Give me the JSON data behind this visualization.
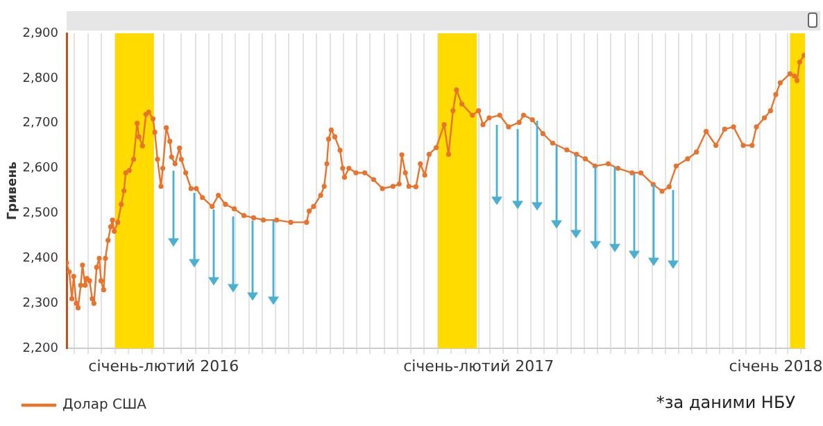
{
  "chart_data": {
    "type": "line",
    "ylabel": "Гривень",
    "annotations": [
      "*за даними НБУ"
    ],
    "xlim": [
      "2015-11-07",
      "2018-02-21"
    ],
    "xticks": [
      {
        "value": "2015-11-16",
        "label": null
      },
      {
        "value": "2015-12-01",
        "label": null
      },
      {
        "value": "2015-12-16",
        "label": null
      },
      {
        "value": "2016-01-01",
        "label": null
      },
      {
        "value": "2016-01-16",
        "label": null
      },
      {
        "value": "2016-02-01",
        "label": null
      },
      {
        "value": "2016-02-12",
        "label": null
      },
      {
        "value": "2016-02-25",
        "label": "січень-лютий 2016"
      },
      {
        "value": "2016-03-16",
        "label": null
      },
      {
        "value": "2016-04-01",
        "label": null
      },
      {
        "value": "2016-04-16",
        "label": null
      },
      {
        "value": "2016-05-01",
        "label": null
      },
      {
        "value": "2016-05-16",
        "label": null
      },
      {
        "value": "2016-06-01",
        "label": null
      },
      {
        "value": "2016-06-16",
        "label": null
      },
      {
        "value": "2016-07-01",
        "label": null
      },
      {
        "value": "2016-07-16",
        "label": null
      },
      {
        "value": "2016-08-01",
        "label": null
      },
      {
        "value": "2016-08-16",
        "label": null
      },
      {
        "value": "2016-09-01",
        "label": null
      },
      {
        "value": "2016-09-16",
        "label": null
      },
      {
        "value": "2016-10-01",
        "label": null
      },
      {
        "value": "2016-10-16",
        "label": null
      },
      {
        "value": "2016-11-01",
        "label": null
      },
      {
        "value": "2016-11-16",
        "label": null
      },
      {
        "value": "2016-12-01",
        "label": null
      },
      {
        "value": "2016-12-16",
        "label": null
      },
      {
        "value": "2017-01-01",
        "label": null
      },
      {
        "value": "2017-01-16",
        "label": null
      },
      {
        "value": "2017-02-01",
        "label": null
      },
      {
        "value": "2017-02-16",
        "label": "січень-лютий 2017"
      },
      {
        "value": "2017-03-01",
        "label": null
      },
      {
        "value": "2017-03-16",
        "label": null
      },
      {
        "value": "2017-04-01",
        "label": null
      },
      {
        "value": "2017-04-16",
        "label": null
      },
      {
        "value": "2017-05-01",
        "label": null
      },
      {
        "value": "2017-05-16",
        "label": null
      },
      {
        "value": "2017-06-01",
        "label": null
      },
      {
        "value": "2017-06-16",
        "label": null
      },
      {
        "value": "2017-07-01",
        "label": null
      },
      {
        "value": "2017-07-16",
        "label": null
      },
      {
        "value": "2017-08-01",
        "label": null
      },
      {
        "value": "2017-08-16",
        "label": null
      },
      {
        "value": "2017-09-01",
        "label": null
      },
      {
        "value": "2017-09-16",
        "label": null
      },
      {
        "value": "2017-10-01",
        "label": null
      },
      {
        "value": "2017-10-16",
        "label": null
      },
      {
        "value": "2017-11-01",
        "label": null
      },
      {
        "value": "2017-11-16",
        "label": null
      },
      {
        "value": "2017-12-01",
        "label": null
      },
      {
        "value": "2017-12-16",
        "label": null
      },
      {
        "value": "2018-01-01",
        "label": null
      },
      {
        "value": "2018-01-19",
        "label": "січень 2018"
      },
      {
        "value": "2018-02-01",
        "label": null
      },
      {
        "value": "2018-02-16",
        "label": null
      }
    ],
    "ylim": [
      2200,
      2900
    ],
    "yticks": [
      {
        "value": 2200,
        "label": "2,200"
      },
      {
        "value": 2300,
        "label": "2,300"
      },
      {
        "value": 2400,
        "label": "2,400"
      },
      {
        "value": 2500,
        "label": "2,500"
      },
      {
        "value": 2600,
        "label": "2,600"
      },
      {
        "value": 2700,
        "label": "2,700"
      },
      {
        "value": 2800,
        "label": "2,800"
      },
      {
        "value": 2900,
        "label": "2,900"
      }
    ],
    "grid": "x",
    "legend": "bottom left",
    "marker": "circle",
    "bands": [
      {
        "axis": "x",
        "from": "2016-01-01",
        "to": "2016-02-14",
        "color": "#ffdb00"
      },
      {
        "axis": "x",
        "from": "2017-01-01",
        "to": "2017-02-14",
        "color": "#ffdb00"
      },
      {
        "axis": "x",
        "from": "2018-02-04",
        "to": "2018-02-21",
        "color": "#ffdb00"
      }
    ],
    "series": [
      {
        "name": "Долар США",
        "color": "#e8732c",
        "x": [
          "2015-11-07",
          "2015-11-10",
          "2015-11-13",
          "2015-11-15",
          "2015-11-18",
          "2015-11-20",
          "2015-11-23",
          "2015-11-25",
          "2015-11-28",
          "2015-11-30",
          "2015-12-03",
          "2015-12-06",
          "2015-12-08",
          "2015-12-11",
          "2015-12-14",
          "2015-12-16",
          "2015-12-19",
          "2015-12-21",
          "2015-12-24",
          "2015-12-27",
          "2015-12-29",
          "2015-12-31",
          "2016-01-04",
          "2016-01-08",
          "2016-01-11",
          "2016-01-13",
          "2016-01-17",
          "2016-01-22",
          "2016-01-26",
          "2016-01-28",
          "2016-02-01",
          "2016-02-05",
          "2016-02-08",
          "2016-02-13",
          "2016-02-15",
          "2016-02-18",
          "2016-02-22",
          "2016-02-24",
          "2016-02-28",
          "2016-03-03",
          "2016-03-05",
          "2016-03-09",
          "2016-03-14",
          "2016-03-16",
          "2016-03-21",
          "2016-03-27",
          "2016-04-02",
          "2016-04-09",
          "2016-04-20",
          "2016-04-27",
          "2016-05-05",
          "2016-05-15",
          "2016-05-26",
          "2016-06-06",
          "2016-06-17",
          "2016-07-02",
          "2016-07-18",
          "2016-08-05",
          "2016-08-08",
          "2016-08-13",
          "2016-08-21",
          "2016-08-25",
          "2016-08-28",
          "2016-08-30",
          "2016-09-02",
          "2016-09-06",
          "2016-09-12",
          "2016-09-15",
          "2016-09-17",
          "2016-09-22",
          "2016-09-30",
          "2016-10-10",
          "2016-10-20",
          "2016-10-30",
          "2016-11-11",
          "2016-11-18",
          "2016-11-21",
          "2016-11-25",
          "2016-11-29",
          "2016-12-07",
          "2016-12-12",
          "2016-12-17",
          "2016-12-22",
          "2016-12-30",
          "2017-01-08",
          "2017-01-13",
          "2017-01-18",
          "2017-01-22",
          "2017-01-28",
          "2017-02-09",
          "2017-02-16",
          "2017-02-21",
          "2017-02-28",
          "2017-03-12",
          "2017-03-22",
          "2017-04-03",
          "2017-04-08",
          "2017-04-18",
          "2017-04-30",
          "2017-05-11",
          "2017-05-27",
          "2017-06-07",
          "2017-06-17",
          "2017-06-28",
          "2017-07-13",
          "2017-07-24",
          "2017-08-09",
          "2017-08-19",
          "2017-09-02",
          "2017-09-12",
          "2017-09-20",
          "2017-09-28",
          "2017-10-11",
          "2017-10-21",
          "2017-11-01",
          "2017-11-12",
          "2017-11-22",
          "2017-12-02",
          "2017-12-13",
          "2017-12-23",
          "2017-12-28",
          "2018-01-06",
          "2018-01-13",
          "2018-01-19",
          "2018-01-24",
          "2018-02-04",
          "2018-02-09",
          "2018-02-12",
          "2018-02-15",
          "2018-02-20"
        ],
        "values": [
          2390,
          2370,
          2310,
          2360,
          2300,
          2290,
          2340,
          2385,
          2340,
          2355,
          2350,
          2310,
          2300,
          2380,
          2400,
          2350,
          2330,
          2400,
          2440,
          2470,
          2485,
          2460,
          2480,
          2520,
          2550,
          2590,
          2595,
          2620,
          2700,
          2670,
          2650,
          2720,
          2725,
          2710,
          2680,
          2620,
          2560,
          2600,
          2690,
          2660,
          2625,
          2610,
          2645,
          2620,
          2590,
          2555,
          2555,
          2535,
          2515,
          2540,
          2520,
          2510,
          2495,
          2490,
          2485,
          2485,
          2480,
          2480,
          2505,
          2515,
          2540,
          2560,
          2610,
          2665,
          2685,
          2670,
          2640,
          2600,
          2580,
          2600,
          2590,
          2590,
          2575,
          2555,
          2560,
          2565,
          2630,
          2590,
          2560,
          2559,
          2610,
          2585,
          2631,
          2646,
          2697,
          2631,
          2728,
          2774,
          2743,
          2718,
          2728,
          2697,
          2712,
          2718,
          2692,
          2702,
          2718,
          2708,
          2677,
          2656,
          2641,
          2631,
          2621,
          2605,
          2610,
          2600,
          2590,
          2590,
          2564,
          2549,
          2559,
          2605,
          2621,
          2636,
          2682,
          2651,
          2687,
          2692,
          2651,
          2651,
          2692,
          2712,
          2728,
          2764,
          2790,
          2810,
          2805,
          2795,
          2836,
          2851
        ]
      }
    ]
  }
}
